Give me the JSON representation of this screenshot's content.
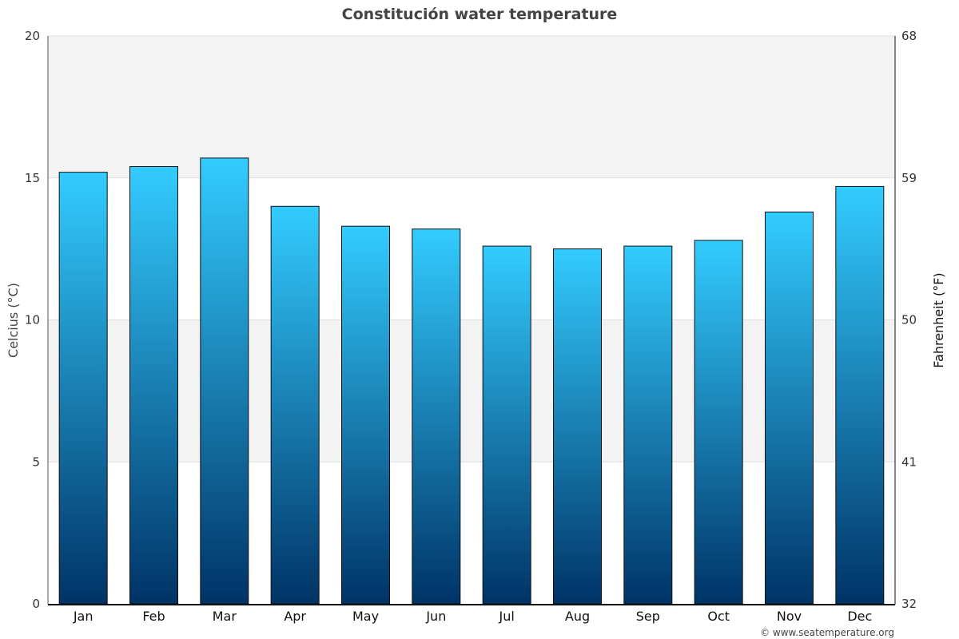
{
  "chart_data": {
    "type": "bar",
    "title": "Constitución water temperature",
    "categories": [
      "Jan",
      "Feb",
      "Mar",
      "Apr",
      "May",
      "Jun",
      "Jul",
      "Aug",
      "Sep",
      "Oct",
      "Nov",
      "Dec"
    ],
    "values": [
      15.2,
      15.4,
      15.7,
      14.0,
      13.3,
      13.2,
      12.6,
      12.5,
      12.6,
      12.8,
      13.8,
      14.7
    ],
    "ylabel": "Celcius (°C)",
    "ylabel_right": "Fahrenheit (°F)",
    "ylim": [
      0,
      20
    ],
    "yticks": [
      "0",
      "5",
      "10",
      "15",
      "20"
    ],
    "yticks_right": [
      "32",
      "41",
      "50",
      "59",
      "68"
    ],
    "grid": true,
    "legend": "none",
    "bar_gradient": {
      "top": "#33ccff",
      "bottom": "#003366"
    },
    "band_color": "#f3f3f3"
  },
  "credit": "© www.seatemperature.org"
}
